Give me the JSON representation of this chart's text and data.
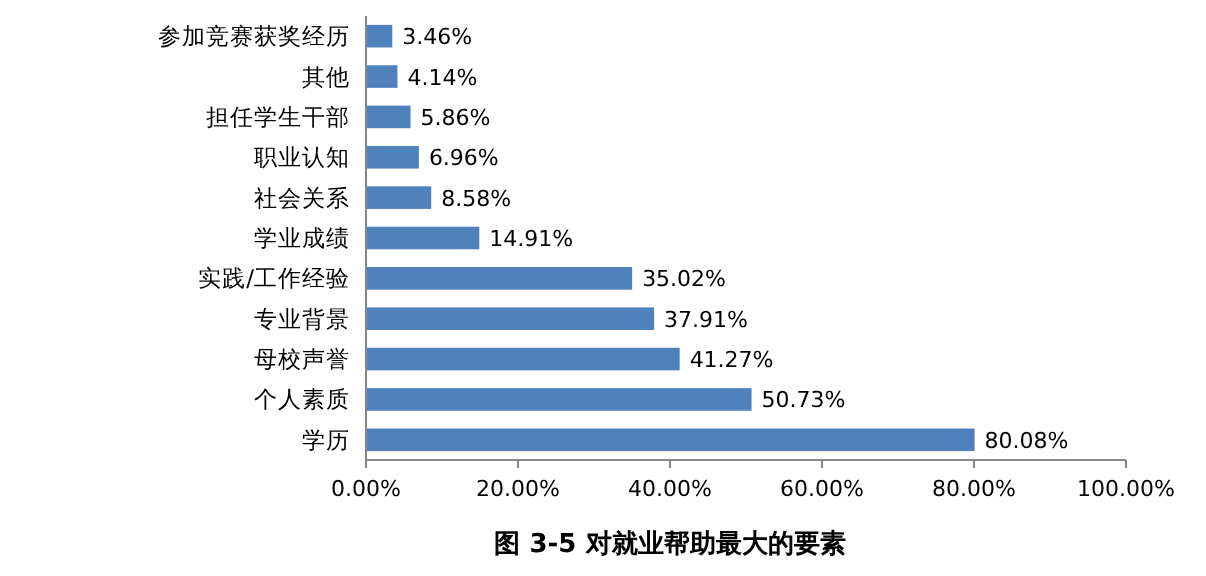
{
  "chart_data": {
    "type": "bar",
    "orientation": "horizontal",
    "title": "图 3-5 对就业帮助最大的要素",
    "categories": [
      "参加竞赛获奖经历",
      "其他",
      "担任学生干部",
      "职业认知",
      "社会关系",
      "学业成绩",
      "实践/工作经验",
      "专业背景",
      "母校声誉",
      "个人素质",
      "学历"
    ],
    "values": [
      3.46,
      4.14,
      5.86,
      6.96,
      8.58,
      14.91,
      35.02,
      37.91,
      41.27,
      50.73,
      80.08
    ],
    "value_labels": [
      "3.46%",
      "4.14%",
      "5.86%",
      "6.96%",
      "8.58%",
      "14.91%",
      "35.02%",
      "37.91%",
      "41.27%",
      "50.73%",
      "80.08%"
    ],
    "color": "#4f81bd",
    "xlim": [
      0,
      100
    ],
    "xticks": [
      {
        "value": 0,
        "label": "0.00%"
      },
      {
        "value": 20,
        "label": "20.00%"
      },
      {
        "value": 40,
        "label": "40.00%"
      },
      {
        "value": 60,
        "label": "60.00%"
      },
      {
        "value": 80,
        "label": "80.00%"
      },
      {
        "value": 100,
        "label": "100.00%"
      }
    ],
    "grid": false
  }
}
